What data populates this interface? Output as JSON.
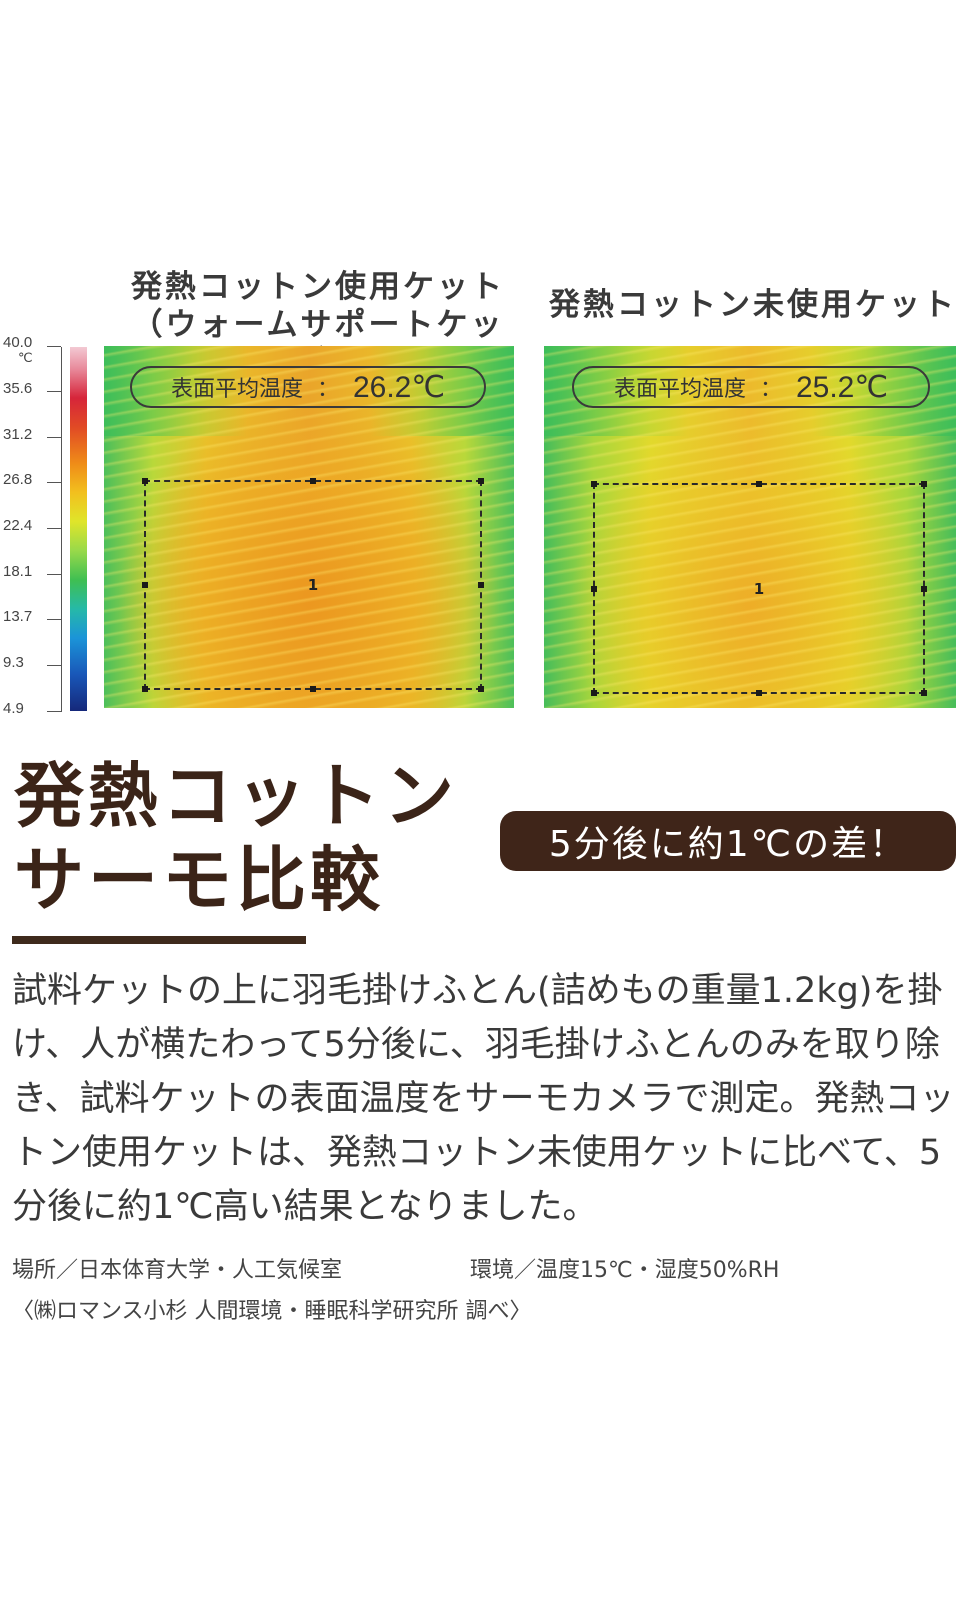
{
  "panels": {
    "left": {
      "title_line1": "発熱コットン使用ケット",
      "title_line2": "（ウォームサポートケット）",
      "avg_label": "表面平均温度",
      "avg_colon": "：",
      "avg_value": "26.2℃",
      "roi_number": "1"
    },
    "right": {
      "title": "発熱コットン未使用ケット",
      "avg_label": "表面平均温度",
      "avg_colon": "：",
      "avg_value": "25.2℃",
      "roi_number": "1"
    }
  },
  "temperature_scale": {
    "unit": "℃",
    "ticks": [
      "40.0",
      "35.6",
      "31.2",
      "26.8",
      "22.4",
      "18.1",
      "13.7",
      "9.3",
      "4.9"
    ]
  },
  "heading": {
    "line1": "発熱コットン",
    "line2": "サーモ比較"
  },
  "badge": "5分後に約1℃の差！",
  "body_text": "試料ケットの上に羽毛掛けふとん(詰めもの重量1.2kg)を掛け、人が横たわって5分後に、羽毛掛けふとんのみを取り除き、試料ケットの表面温度をサーモカメラで測定。発熱コットン使用ケットは、発熱コットン未使用ケットに比べて、5分後に約1℃高い結果となりました。",
  "meta": {
    "place": "場所／日本体育大学・人工気候室",
    "environment": "環境／温度15℃・湿度50%RH",
    "source": "〈㈱ロマンス小杉 人間環境・睡眠科学研究所 調べ〉"
  }
}
